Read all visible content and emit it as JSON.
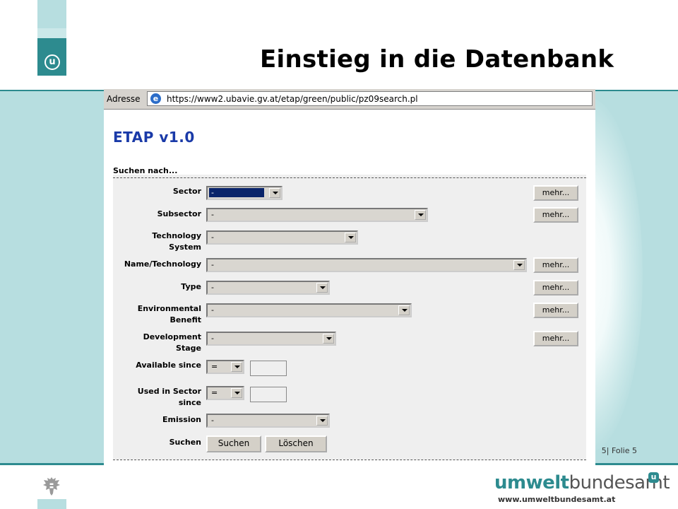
{
  "slide": {
    "title": "Einstieg in die Datenbank",
    "logo_letter": "u",
    "folie": "5| Folie 5",
    "brand_strong": "umwelt",
    "brand_rest": "bundesamt",
    "brand_mark": "u",
    "brand_url": "www.umweltbundesamt.at"
  },
  "browser": {
    "address_label": "Adresse",
    "url": "https://www2.ubavie.gv.at/etap/green/public/pz09search.pl",
    "page_icon": "ie-page-icon"
  },
  "app": {
    "title": "ETAP v1.0",
    "search_heading": "Suchen nach..."
  },
  "form": {
    "sector": {
      "label": "Sector",
      "value": "-",
      "more": "mehr..."
    },
    "subsector": {
      "label": "Subsector",
      "value": "-",
      "more": "mehr..."
    },
    "technology_system": {
      "label_1": "Technology",
      "label_2": "System",
      "value": "-"
    },
    "name_technology": {
      "label": "Name/Technology",
      "value": "-",
      "more": "mehr..."
    },
    "type": {
      "label": "Type",
      "value": "-",
      "more": "mehr..."
    },
    "environmental_benefit": {
      "label_1": "Environmental",
      "label_2": "Benefit",
      "value": "-",
      "more": "mehr..."
    },
    "development_stage": {
      "label_1": "Development",
      "label_2": "Stage",
      "value": "-",
      "more": "mehr..."
    },
    "available_since": {
      "label": "Available since",
      "operator": "=",
      "year": ""
    },
    "used_in_sector_since": {
      "label_1": "Used in Sector",
      "label_2": "since",
      "operator": "=",
      "year": ""
    },
    "emission": {
      "label": "Emission",
      "value": "-"
    },
    "search": {
      "label": "Suchen",
      "submit": "Suchen",
      "reset": "Löschen"
    }
  }
}
